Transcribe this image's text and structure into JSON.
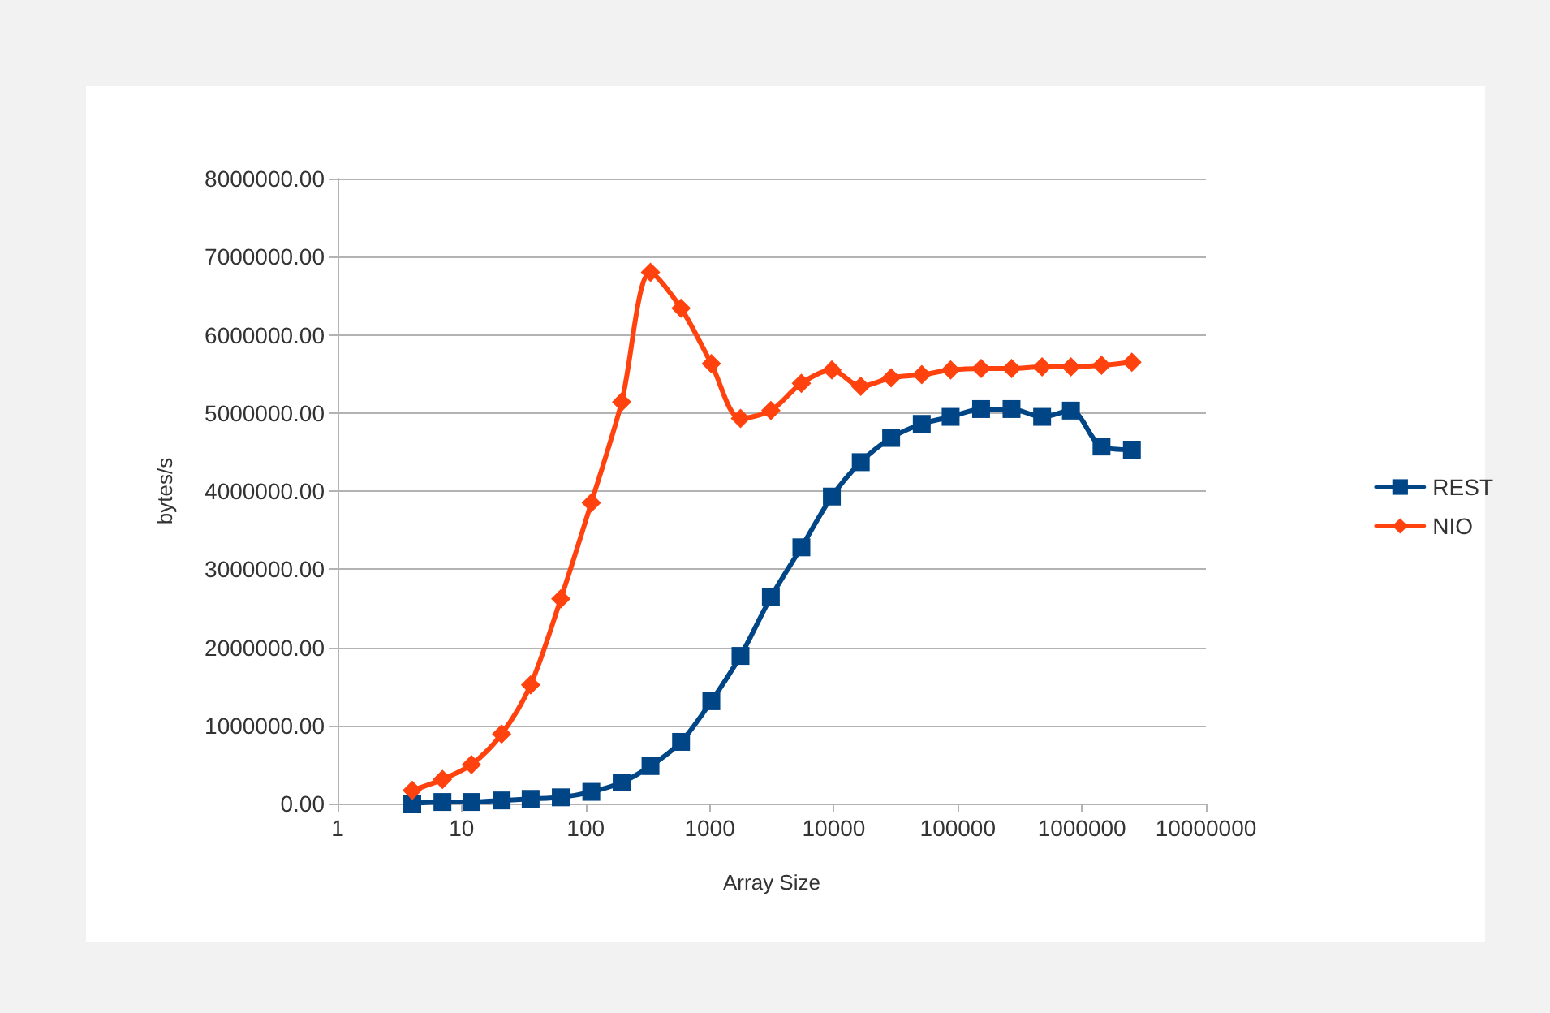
{
  "chart_data": {
    "type": "line",
    "xlabel": "Array Size",
    "ylabel": "bytes/s",
    "x": [
      4,
      7,
      12,
      21,
      36,
      63,
      111,
      195,
      333,
      587,
      1030,
      1770,
      3110,
      5480,
      9650,
      16500,
      29000,
      51200,
      87500,
      154000,
      271000,
      478000,
      816000,
      1440000,
      2530000
    ],
    "series": [
      {
        "name": "REST",
        "color": "#004586",
        "marker": "square",
        "values": [
          0,
          20000,
          20000,
          40000,
          60000,
          80000,
          150000,
          270000,
          480000,
          790000,
          1310000,
          1890000,
          2640000,
          3280000,
          3930000,
          4370000,
          4680000,
          4860000,
          4950000,
          5050000,
          5050000,
          4950000,
          5030000,
          4570000,
          4530000
        ]
      },
      {
        "name": "NIO",
        "color": "#ff420e",
        "marker": "diamond",
        "values": [
          170000,
          310000,
          500000,
          890000,
          1520000,
          2620000,
          3850000,
          5140000,
          6800000,
          6340000,
          5630000,
          4930000,
          5030000,
          5380000,
          5550000,
          5340000,
          5450000,
          5490000,
          5550000,
          5570000,
          5570000,
          5590000,
          5590000,
          5610000,
          5650000
        ]
      }
    ],
    "log": "x",
    "xlim": [
      1,
      10000000
    ],
    "xticks": [
      1,
      10,
      100,
      1000,
      10000,
      100000,
      1000000,
      10000000
    ],
    "ylim": [
      0,
      8000000
    ],
    "yticks": [
      {
        "value": 0,
        "label": "0.00"
      },
      {
        "value": 1000000,
        "label": "1000000.00"
      },
      {
        "value": 2000000,
        "label": "2000000.00"
      },
      {
        "value": 3000000,
        "label": "3000000.00"
      },
      {
        "value": 4000000,
        "label": "4000000.00"
      },
      {
        "value": 5000000,
        "label": "5000000.00"
      },
      {
        "value": 6000000,
        "label": "6000000.00"
      },
      {
        "value": 7000000,
        "label": "7000000.00"
      },
      {
        "value": 8000000,
        "label": "8000000.00"
      }
    ],
    "grid": "y",
    "legend": "right",
    "line_style": "solid"
  }
}
